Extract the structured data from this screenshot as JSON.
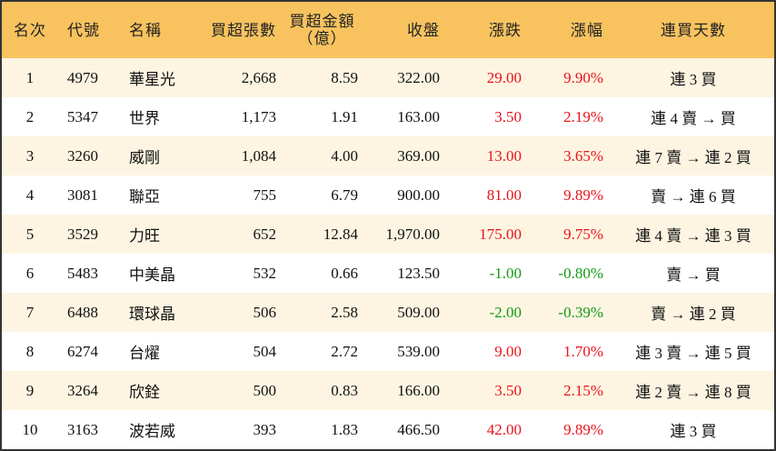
{
  "table": {
    "header": [
      "名次",
      "代號",
      "名稱",
      "買超張數",
      [
        "買超金額",
        "（億）"
      ],
      "收盤",
      "漲跌",
      "漲幅",
      "連買天數"
    ],
    "rows": [
      [
        "1",
        "4979",
        "華星光",
        "2,668",
        "8.59",
        "322.00",
        "29.00",
        "9.90%",
        "連 3 買"
      ],
      [
        "2",
        "5347",
        "世界",
        "1,173",
        "1.91",
        "163.00",
        "3.50",
        "2.19%",
        "連 4 賣 → 買"
      ],
      [
        "3",
        "3260",
        "威剛",
        "1,084",
        "4.00",
        "369.00",
        "13.00",
        "3.65%",
        "連 7 賣 → 連 2 買"
      ],
      [
        "4",
        "3081",
        "聯亞",
        "755",
        "6.79",
        "900.00",
        "81.00",
        "9.89%",
        "賣 → 連 6 買"
      ],
      [
        "5",
        "3529",
        "力旺",
        "652",
        "12.84",
        "1,970.00",
        "175.00",
        "9.75%",
        "連 4 賣 → 連 3 買"
      ],
      [
        "6",
        "5483",
        "中美晶",
        "532",
        "0.66",
        "123.50",
        "-1.00",
        "-0.80%",
        "賣 → 買"
      ],
      [
        "7",
        "6488",
        "環球晶",
        "506",
        "2.58",
        "509.00",
        "-2.00",
        "-0.39%",
        "賣 → 連 2 買"
      ],
      [
        "8",
        "6274",
        "台燿",
        "504",
        "2.72",
        "539.00",
        "9.00",
        "1.70%",
        "連 3 賣 → 連 5 買"
      ],
      [
        "9",
        "3264",
        "欣銓",
        "500",
        "0.83",
        "166.00",
        "3.50",
        "2.15%",
        "連 2 賣 → 連 8 買"
      ],
      [
        "10",
        "3163",
        "波若威",
        "393",
        "1.83",
        "466.50",
        "42.00",
        "9.89%",
        "連 3 買"
      ]
    ]
  }
}
